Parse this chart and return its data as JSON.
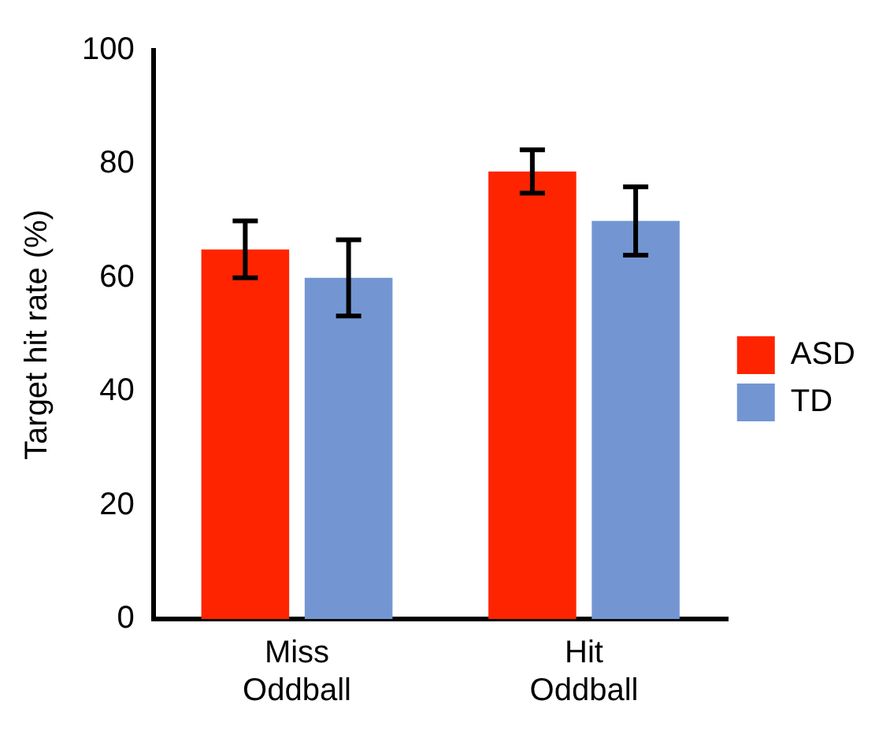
{
  "chart_data": {
    "type": "bar",
    "ylabel": "Target hit rate (%)",
    "categories": [
      "Miss Oddball",
      "Hit Oddball"
    ],
    "series": [
      {
        "name": "ASD",
        "color": "#ff2400",
        "values": [
          65,
          78.7
        ],
        "errors": [
          5,
          3.8
        ]
      },
      {
        "name": "TD",
        "color": "#7396d3",
        "values": [
          60,
          70
        ],
        "errors": [
          6.7,
          6
        ]
      }
    ],
    "ylim": [
      0,
      100
    ],
    "yticks": [
      0,
      20,
      40,
      60,
      80,
      100
    ],
    "grid": false,
    "legend": "right"
  }
}
